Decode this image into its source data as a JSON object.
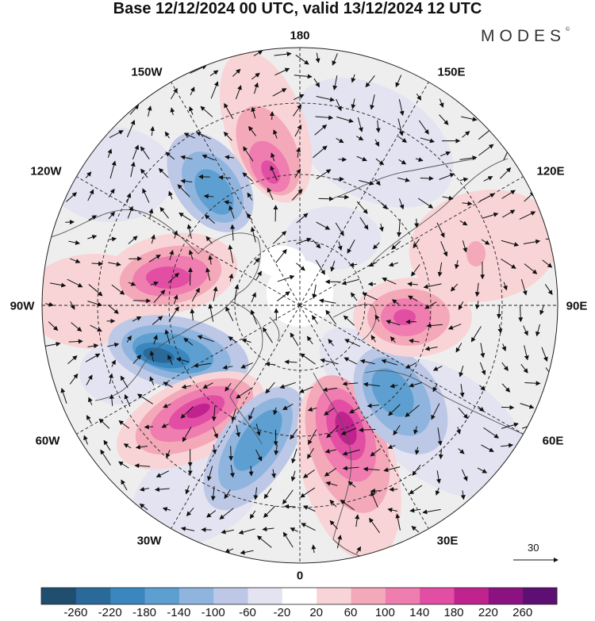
{
  "header": {
    "title": "Base 12/12/2024 00 UTC, valid 13/12/2024 12 UTC",
    "brand": "MODES",
    "brand_mark": "©"
  },
  "map": {
    "projection": "north-polar-stereographic",
    "longitude_labels": {
      "top": "180",
      "bottom": "0",
      "left": "90W",
      "right": "90E",
      "upper_left_1": "150W",
      "upper_left_2": "120W",
      "upper_right_1": "150E",
      "upper_right_2": "120E",
      "lower_left_1": "60W",
      "lower_left_2": "30W",
      "lower_right_1": "60E",
      "lower_right_2": "30E"
    },
    "vector_scale_label": "30",
    "colors": {
      "ocean_background": "#eeeeee",
      "coast": "#555555",
      "grid": "#222222"
    }
  },
  "colorbar": {
    "labels": [
      "-260",
      "-220",
      "-180",
      "-140",
      "-100",
      "-60",
      "-20",
      "20",
      "60",
      "100",
      "140",
      "180",
      "220",
      "260"
    ],
    "colors": [
      "#1f4e6e",
      "#2a6a9a",
      "#3a86bf",
      "#5d9fd0",
      "#8fb4de",
      "#bcc8e6",
      "#e3e3f1",
      "#ffffff",
      "#f9d4d6",
      "#f4a9b9",
      "#ef7db0",
      "#e24ea3",
      "#c0238e",
      "#8b1280",
      "#5e0f74"
    ]
  }
}
